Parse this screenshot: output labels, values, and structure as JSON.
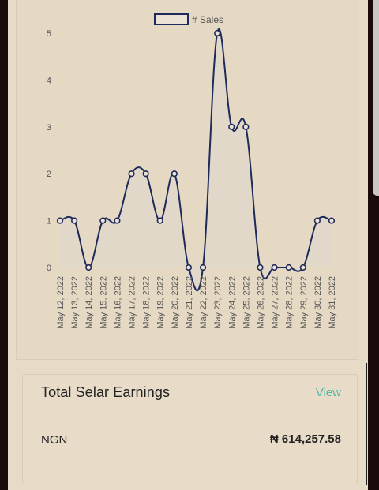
{
  "chart_data": {
    "type": "line",
    "x": [
      "May 12, 2022",
      "May 13, 2022",
      "May 14, 2022",
      "May 15, 2022",
      "May 16, 2022",
      "May 17, 2022",
      "May 18, 2022",
      "May 19, 2022",
      "May 20, 2022",
      "May 21, 2022",
      "May 22, 2022",
      "May 23, 2022",
      "May 24, 2022",
      "May 25, 2022",
      "May 26, 2022",
      "May 27, 2022",
      "May 28, 2022",
      "May 29, 2022",
      "May 30, 2022",
      "May 31, 2022"
    ],
    "series": [
      {
        "name": "# Sales",
        "values": [
          1,
          1,
          0,
          1,
          1,
          2,
          2,
          1,
          2,
          0,
          0,
          5,
          3,
          3,
          0,
          0,
          0,
          0,
          1,
          1
        ],
        "color": "#1e2a5a"
      }
    ],
    "yticks": [
      "0",
      "1",
      "2",
      "3",
      "4",
      "5"
    ],
    "ylim": [
      0,
      5
    ],
    "legend": "top-center"
  },
  "earnings": {
    "title": "Total Selar Earnings",
    "view_label": "View",
    "currency": "NGN",
    "amount": "₦ 614,257.58"
  },
  "colors": {
    "line": "#1e2a5a",
    "accent": "#4fb7a4",
    "fill": "#e2d8c9"
  }
}
